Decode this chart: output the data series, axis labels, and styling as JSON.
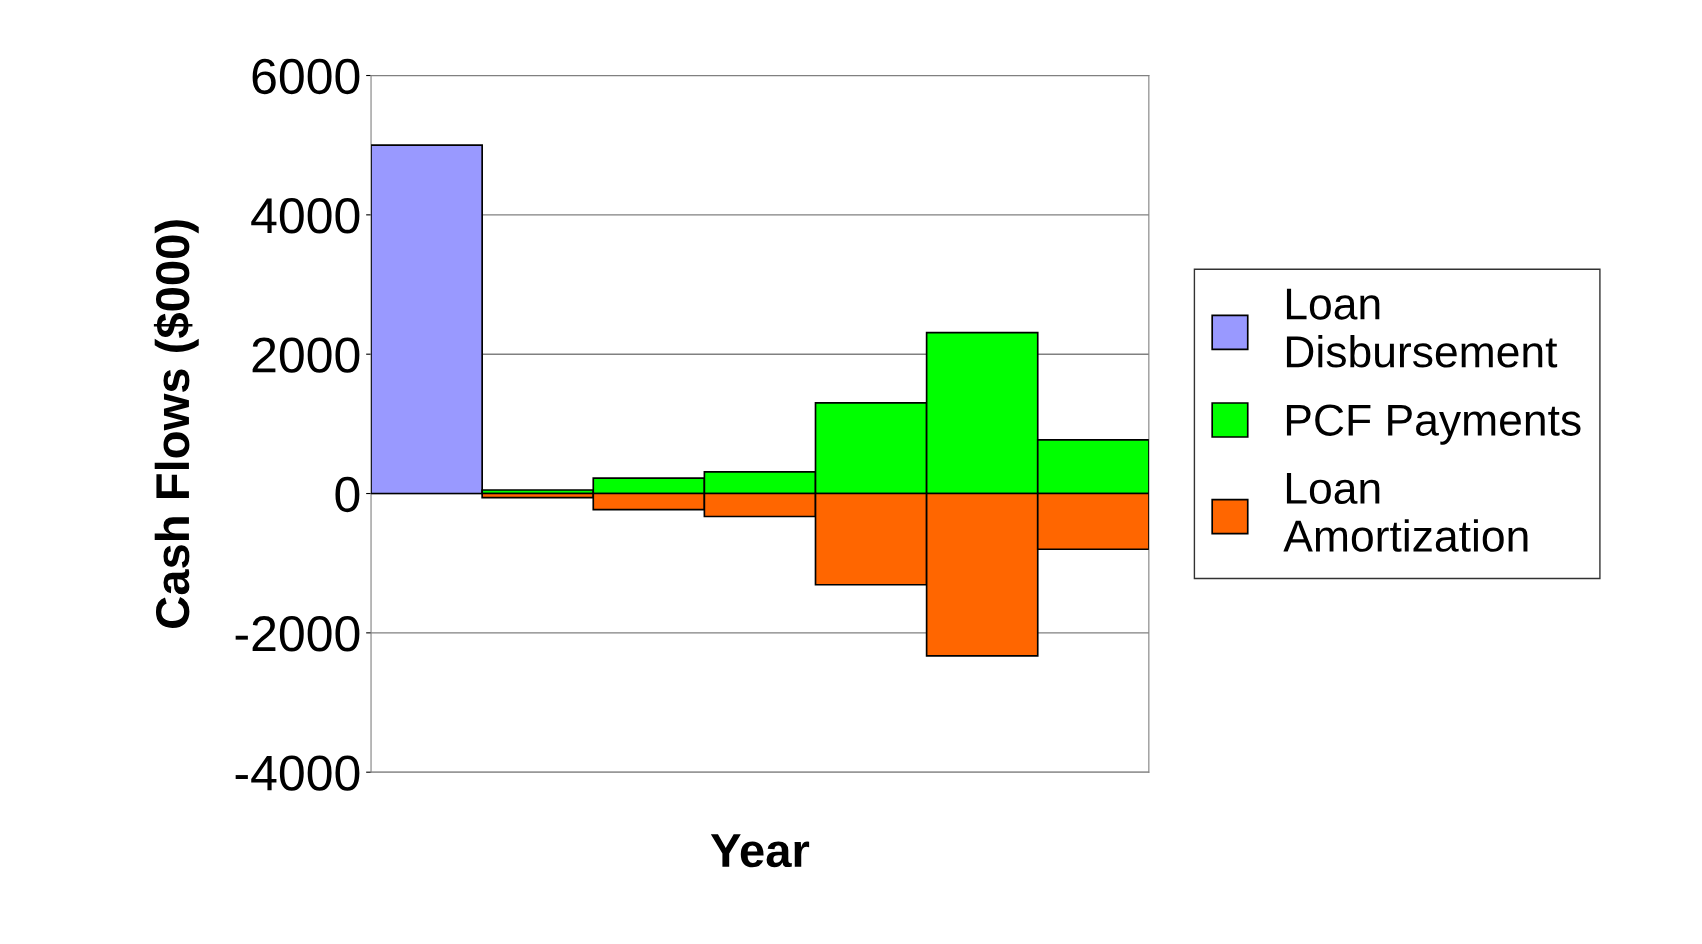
{
  "chart_data": {
    "type": "bar",
    "stacked": true,
    "xlabel": "Year",
    "ylabel": "Cash Flows ($000)",
    "categories": [
      null,
      null,
      null,
      null,
      null,
      null,
      null
    ],
    "series": [
      {
        "name": "Loan Disbursement",
        "color": "#9999ff",
        "values": [
          5000,
          null,
          null,
          null,
          null,
          null,
          null
        ]
      },
      {
        "name": "PCF Payments",
        "color": "#00ff00",
        "values": [
          null,
          50,
          220,
          310,
          1300,
          2310,
          770
        ]
      },
      {
        "name": "Loan Amortization",
        "color": "#ff6600",
        "values": [
          null,
          -60,
          -230,
          -330,
          -1310,
          -2330,
          -800
        ]
      }
    ],
    "ylim": [
      -4000,
      6000
    ],
    "yticks": [
      -4000,
      -2000,
      0,
      2000,
      4000,
      6000
    ],
    "grid": "y",
    "legend": "right"
  }
}
